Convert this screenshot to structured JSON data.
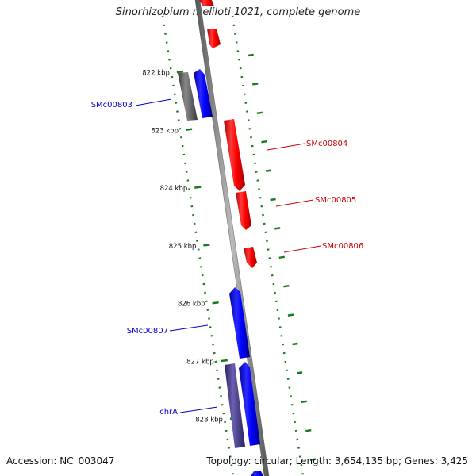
{
  "title": "Sinorhizobium meliloti 1021, complete genome",
  "footer": {
    "accession": "Accession: NC_003047",
    "summary": "Topology: circular; Length: 3,654,135 bp; Genes: 3,425"
  },
  "ruler": {
    "unit": "kbp",
    "ticks": [
      "822 kbp",
      "823 kbp",
      "824 kbp",
      "825 kbp",
      "826 kbp",
      "827 kbp",
      "828 kbp"
    ]
  },
  "strand_colors": {
    "forward": "#0000ff",
    "reverse": "#ff0000",
    "forward_shadow": "#5a5a5a",
    "highlight": "#4a3f8c",
    "backbone": "#888888",
    "tick_color": "#1a7a1a"
  },
  "genes": [
    {
      "id": "SMc00803",
      "label": "SMc00803",
      "strand": "forward"
    },
    {
      "id": "SMc00804",
      "label": "SMc00804",
      "strand": "reverse"
    },
    {
      "id": "SMc00805",
      "label": "SMc00805",
      "strand": "reverse"
    },
    {
      "id": "SMc00806",
      "label": "SMc00806",
      "strand": "reverse"
    },
    {
      "id": "SMc00807",
      "label": "SMc00807",
      "strand": "forward"
    },
    {
      "id": "chrA",
      "label": "chrA",
      "strand": "forward"
    }
  ]
}
